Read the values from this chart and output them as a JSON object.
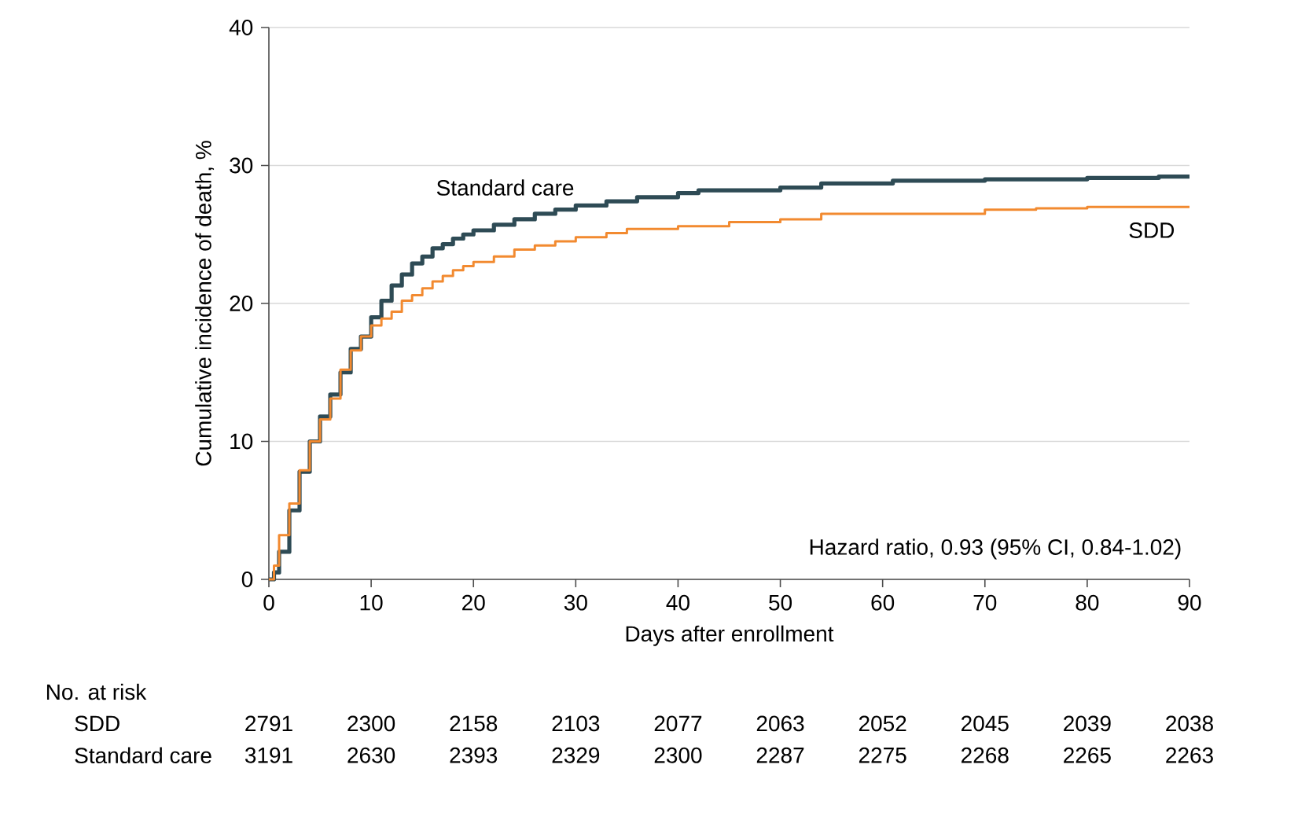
{
  "chart_data": {
    "type": "step",
    "xlabel": "Days after enrollment",
    "ylabel": "Cumulative incidence of death, %",
    "x": [
      0,
      0.5,
      1,
      2,
      3,
      4,
      5,
      6,
      7,
      8,
      9,
      10,
      11,
      12,
      13,
      14,
      15,
      16,
      17,
      18,
      19,
      20,
      22,
      24,
      26,
      28,
      30,
      33,
      36,
      40,
      42,
      50,
      54,
      61,
      70,
      80,
      87,
      90
    ],
    "series": [
      {
        "name": "Standard care",
        "color": "#2e4b55",
        "values": [
          0,
          0.5,
          2,
          5,
          7.8,
          10,
          11.8,
          13.4,
          15,
          16.7,
          17.6,
          19,
          20.2,
          21.3,
          22.1,
          22.9,
          23.4,
          24,
          24.3,
          24.7,
          25,
          25.3,
          25.7,
          26.1,
          26.5,
          26.8,
          27.1,
          27.4,
          27.7,
          28,
          28.2,
          28.4,
          28.7,
          28.9,
          29,
          29.1,
          29.2,
          29.2
        ]
      },
      {
        "name": "SDD",
        "color": "#f28a30",
        "x": [
          0,
          0.5,
          1,
          2,
          3,
          4,
          5,
          6,
          7,
          8,
          9,
          10,
          11,
          12,
          13,
          14,
          15,
          16,
          17,
          18,
          19,
          20,
          22,
          24,
          26,
          28,
          30,
          33,
          35,
          40,
          45,
          50,
          54,
          62,
          70,
          75,
          80,
          90
        ],
        "values": [
          0,
          1,
          3.2,
          5.5,
          7.9,
          10,
          11.6,
          13.1,
          15.2,
          16.6,
          17.6,
          18.4,
          18.9,
          19.4,
          20.2,
          20.6,
          21.1,
          21.6,
          22,
          22.4,
          22.7,
          23,
          23.4,
          23.9,
          24.2,
          24.5,
          24.8,
          25.1,
          25.4,
          25.6,
          25.9,
          26.1,
          26.5,
          26.5,
          26.8,
          26.9,
          27,
          27
        ]
      }
    ],
    "xlim": [
      0,
      90
    ],
    "ylim": [
      0,
      40
    ],
    "xticks": [
      0,
      10,
      20,
      30,
      40,
      50,
      60,
      70,
      80,
      90
    ],
    "yticks": [
      0,
      10,
      20,
      30,
      40
    ],
    "grid": "y",
    "annotations": [
      "Hazard ratio, 0.93 (95% CI, 0.84-1.02)",
      "No. at risk",
      "SDD",
      "2791",
      "2300",
      "2158",
      "2103",
      "2077",
      "2063",
      "2052",
      "2045",
      "2039",
      "2038",
      "Standard care",
      "3191",
      "2630",
      "2393",
      "2329",
      "2300",
      "2287",
      "2275",
      "2268",
      "2265",
      "2263"
    ]
  }
}
